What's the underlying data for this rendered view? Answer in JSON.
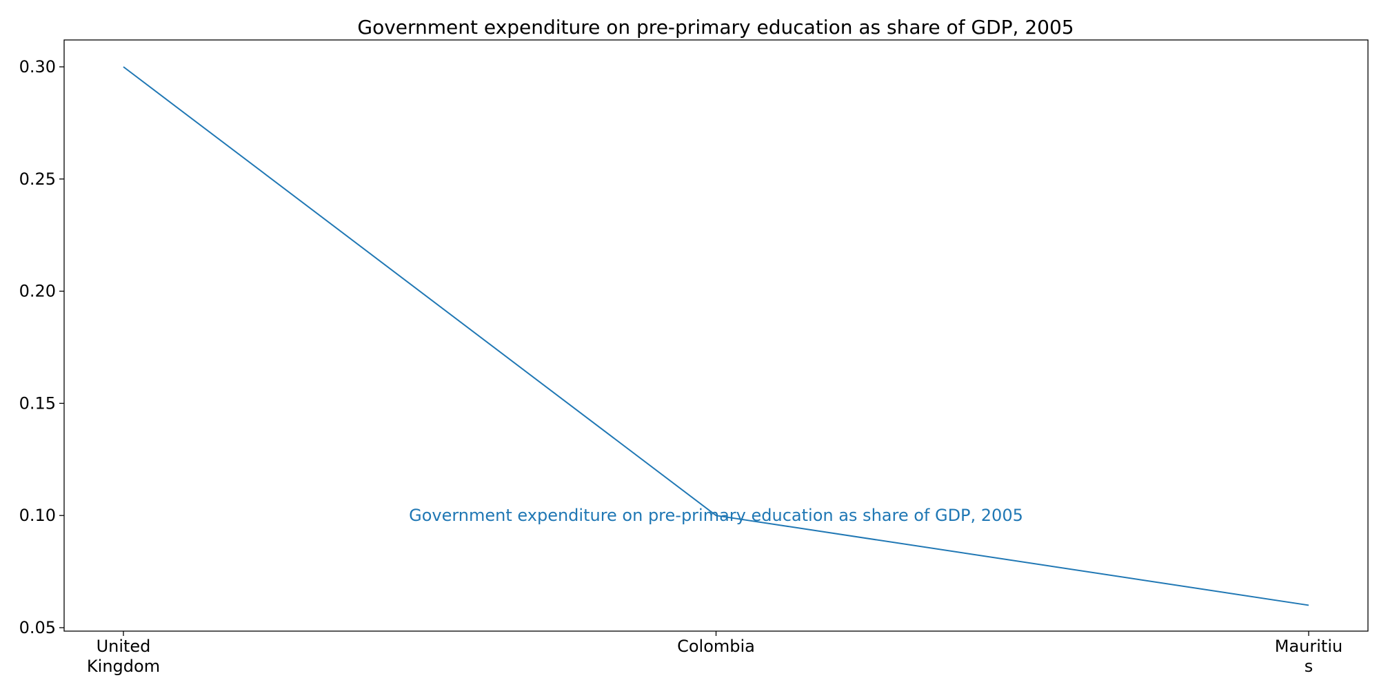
{
  "chart_data": {
    "type": "line",
    "title": "Government expenditure on pre-primary education as share of GDP, 2005",
    "categories": [
      "United Kingdom",
      "Colombia",
      "Mauritius"
    ],
    "category_tick_lines": [
      [
        "United",
        "Kingdom"
      ],
      [
        "Colombia"
      ],
      [
        "Mauritiu",
        "s"
      ]
    ],
    "series": [
      {
        "name": "Government expenditure on pre-primary education as share of GDP, 2005",
        "values": [
          0.3,
          0.1,
          0.06
        ],
        "color": "#1f77b4"
      }
    ],
    "ylim": [
      0.05,
      0.3
    ],
    "yticks": [
      "0.05",
      "0.10",
      "0.15",
      "0.20",
      "0.25",
      "0.30"
    ],
    "grid": false,
    "xlabel": "",
    "ylabel": ""
  }
}
